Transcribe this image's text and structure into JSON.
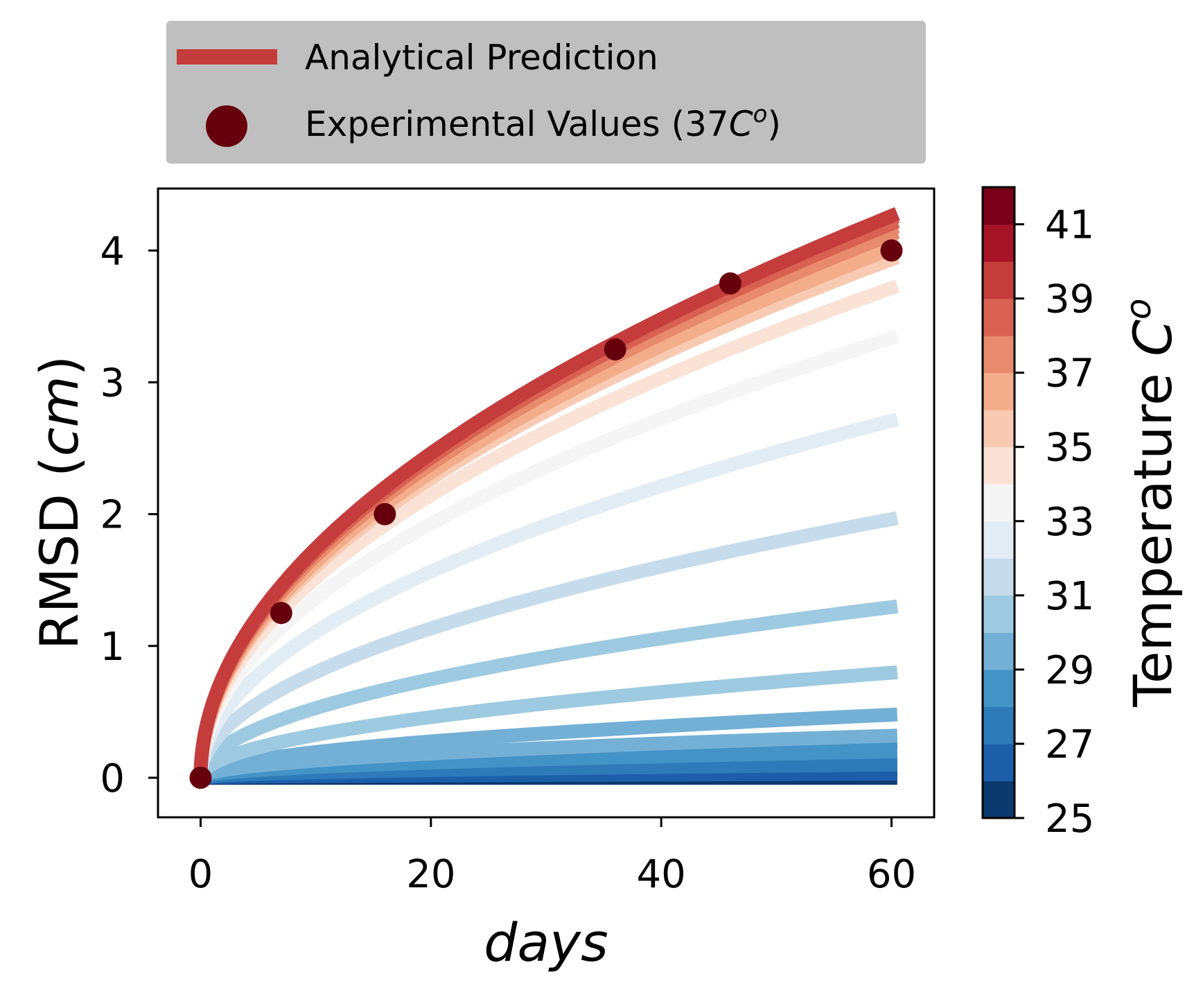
{
  "chart_data": {
    "type": "line",
    "xlabel": "days",
    "ylabel": {
      "prefix": "RMSD (",
      "unit": "cm",
      "suffix": ")"
    },
    "xlim": [
      -3.7,
      63.7
    ],
    "ylim": [
      -0.3,
      4.47
    ],
    "x_ticks": [
      0,
      20,
      40,
      60
    ],
    "y_ticks": [
      0,
      1,
      2,
      3,
      4
    ],
    "grid": false,
    "curve_model": "RMSD = A * sqrt(days), one curve per temperature, shaded by colorbar",
    "series": [
      {
        "temp": 25.5,
        "end_rmsd": 0.0
      },
      {
        "temp": 26.0,
        "end_rmsd": 0.03
      },
      {
        "temp": 26.5,
        "end_rmsd": 0.06
      },
      {
        "temp": 27.0,
        "end_rmsd": 0.1
      },
      {
        "temp": 27.5,
        "end_rmsd": 0.15
      },
      {
        "temp": 28.0,
        "end_rmsd": 0.2
      },
      {
        "temp": 28.5,
        "end_rmsd": 0.27
      },
      {
        "temp": 29.0,
        "end_rmsd": 0.32
      },
      {
        "temp": 29.5,
        "end_rmsd": 0.48
      },
      {
        "temp": 30.0,
        "end_rmsd": 0.8
      },
      {
        "temp": 30.5,
        "end_rmsd": 1.3
      },
      {
        "temp": 31.5,
        "end_rmsd": 1.97
      },
      {
        "temp": 32.5,
        "end_rmsd": 2.72
      },
      {
        "temp": 33.5,
        "end_rmsd": 3.35
      },
      {
        "temp": 34.5,
        "end_rmsd": 3.73
      },
      {
        "temp": 35.5,
        "end_rmsd": 3.95
      },
      {
        "temp": 36.0,
        "end_rmsd": 4.03
      },
      {
        "temp": 36.5,
        "end_rmsd": 4.09
      },
      {
        "temp": 37.0,
        "end_rmsd": 4.14
      },
      {
        "temp": 37.5,
        "end_rmsd": 4.18
      },
      {
        "temp": 38.0,
        "end_rmsd": 4.22
      },
      {
        "temp": 38.5,
        "end_rmsd": 4.26
      },
      {
        "temp": 39.5,
        "end_rmsd": 4.28
      }
    ],
    "experimental_points": [
      {
        "x": 0,
        "y": 0.0
      },
      {
        "x": 7,
        "y": 1.25
      },
      {
        "x": 16,
        "y": 2.0
      },
      {
        "x": 36,
        "y": 3.25
      },
      {
        "x": 46,
        "y": 3.75
      },
      {
        "x": 60,
        "y": 4.0
      }
    ],
    "legend": {
      "placement": "top-center-outside",
      "entries": [
        {
          "label": "Analytical Prediction",
          "color": "#c43c3c",
          "marker": "line"
        },
        {
          "label_prefix": "Experimental Values (37",
          "label_unit": "C",
          "label_sup": "o",
          "label_suffix": ")",
          "color": "#67000d",
          "marker": "circle"
        }
      ]
    },
    "colorbar": {
      "label_prefix": "Temperature ",
      "label_unit": "C",
      "label_sup": "o",
      "range": [
        25,
        42
      ],
      "tick_values": [
        25,
        27,
        29,
        31,
        33,
        35,
        37,
        39,
        41
      ],
      "tick_labels": [
        "25",
        "27",
        "29",
        "31",
        "33",
        "35",
        "37",
        "39",
        "41"
      ],
      "colors": [
        "#0b3a6e",
        "#1c5fa8",
        "#2f7ab8",
        "#4493c6",
        "#74b0d6",
        "#9dcae1",
        "#c6dcec",
        "#e2ecf4",
        "#f5f5f5",
        "#fae3d6",
        "#f9cab2",
        "#f4ad8b",
        "#e88a6d",
        "#d86152",
        "#c43c3c",
        "#a61527",
        "#7a0019"
      ]
    },
    "point_color": "#67000d",
    "analytical_color": "#c43c3c"
  }
}
